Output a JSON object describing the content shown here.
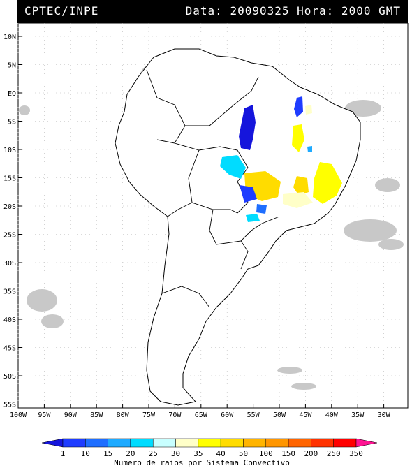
{
  "header": {
    "source": "CPTEC/INPE",
    "datetime": "Data: 20090325 Hora: 2000 GMT",
    "bg": "#000000",
    "fg": "#ffffff"
  },
  "map": {
    "lat_labels": [
      "10N",
      "5N",
      "EQ",
      "5S",
      "10S",
      "15S",
      "20S",
      "25S",
      "30S",
      "35S",
      "40S",
      "45S",
      "50S",
      "55S"
    ],
    "lon_labels": [
      "100W",
      "95W",
      "90W",
      "85W",
      "80W",
      "75W",
      "70W",
      "65W",
      "60W",
      "55W",
      "50W",
      "45W",
      "40W",
      "35W",
      "30W"
    ],
    "land_fill": "#ffffff",
    "border_color": "#000000",
    "cloud_color": "#c8c8c8"
  },
  "legend": {
    "title": "Numero de raios por Sistema Convectivo",
    "levels": [
      "1",
      "10",
      "15",
      "20",
      "25",
      "30",
      "35",
      "40",
      "50",
      "100",
      "150",
      "200",
      "250",
      "350"
    ],
    "colors": [
      "#1515dc",
      "#1e3cff",
      "#1e6eff",
      "#1eaaff",
      "#00dcff",
      "#c8ffff",
      "#ffffc8",
      "#ffff00",
      "#ffdc00",
      "#ffb400",
      "#ff9600",
      "#ff6400",
      "#ff3200",
      "#ff0000",
      "#ff1493"
    ]
  }
}
